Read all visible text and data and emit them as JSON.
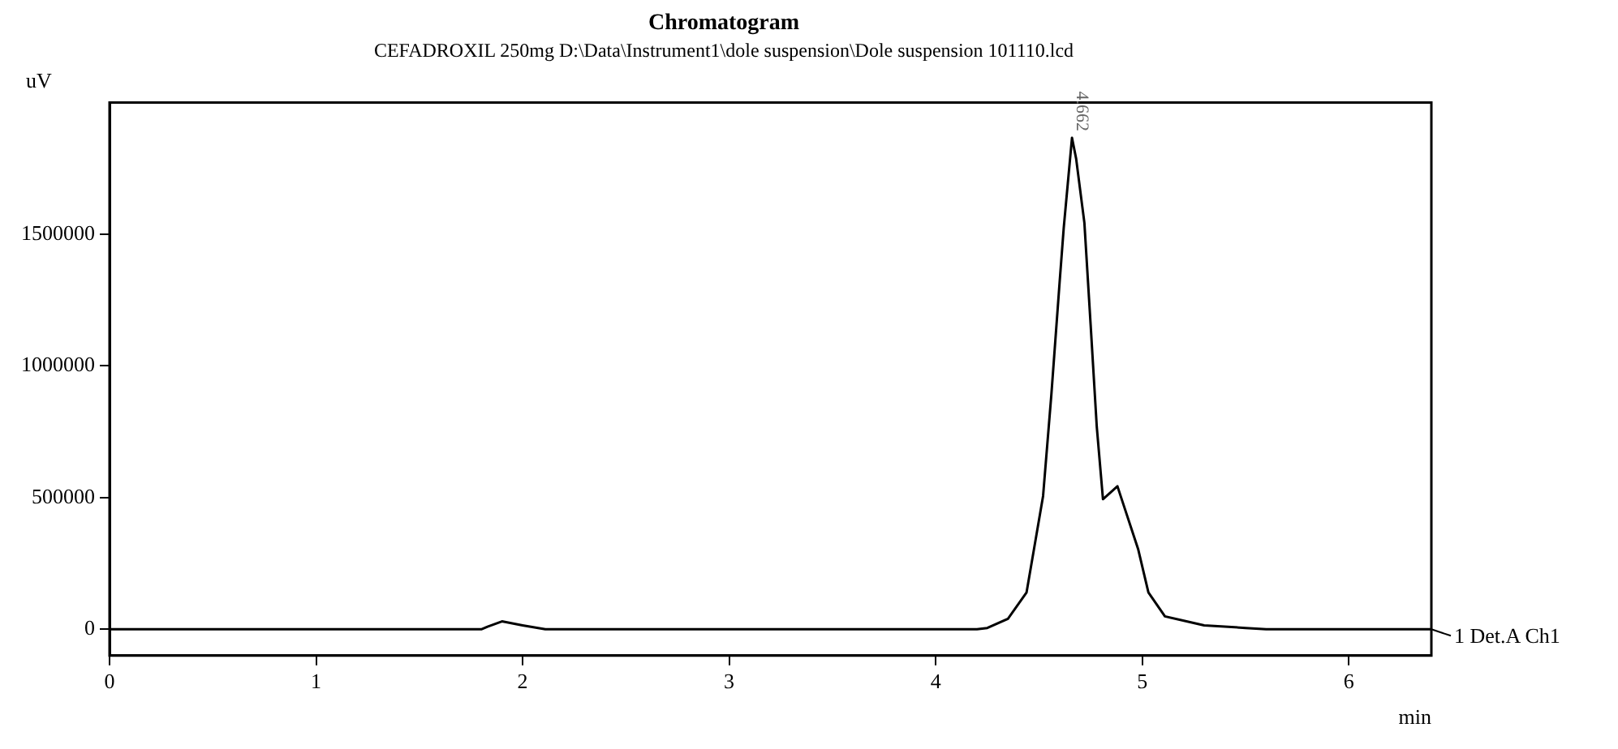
{
  "chart_data": {
    "type": "line",
    "title": "Chromatogram",
    "subtitle": "CEFADROXIL 250mg D:\\Data\\Instrument1\\dole suspension\\Dole suspension 101110.lcd",
    "xlabel": "min",
    "ylabel": "uV",
    "series": [
      {
        "name": "1 Det.A Ch1",
        "color": "#000000",
        "x": [
          0,
          1.8,
          1.83,
          1.9,
          2.0,
          2.11,
          4.2,
          4.25,
          4.35,
          4.44,
          4.52,
          4.56,
          4.6,
          4.62,
          4.66,
          4.68,
          4.72,
          4.75,
          4.78,
          4.81,
          4.88,
          4.98,
          5.03,
          5.11,
          5.3,
          5.5,
          5.6,
          6.4
        ],
        "values": [
          0,
          0,
          10000,
          30000,
          15000,
          0,
          0,
          5000,
          40000,
          140000,
          506000,
          890000,
          1317000,
          1524000,
          1866000,
          1787000,
          1543000,
          1159000,
          768000,
          494000,
          543000,
          305000,
          140000,
          49000,
          15000,
          5000,
          0,
          0
        ]
      }
    ],
    "annotations": [
      {
        "text": "4.662",
        "x": 4.66,
        "y": 1866000
      }
    ],
    "xlim": [
      0,
      6.4
    ],
    "xticks": [
      0,
      1,
      2,
      3,
      4,
      5,
      6
    ],
    "ylim": [
      -100000,
      2000000
    ],
    "yticks": [
      0,
      500000,
      1000000,
      1500000
    ],
    "grid": false,
    "legend": "right",
    "marker": "none",
    "line_style": "solid"
  }
}
